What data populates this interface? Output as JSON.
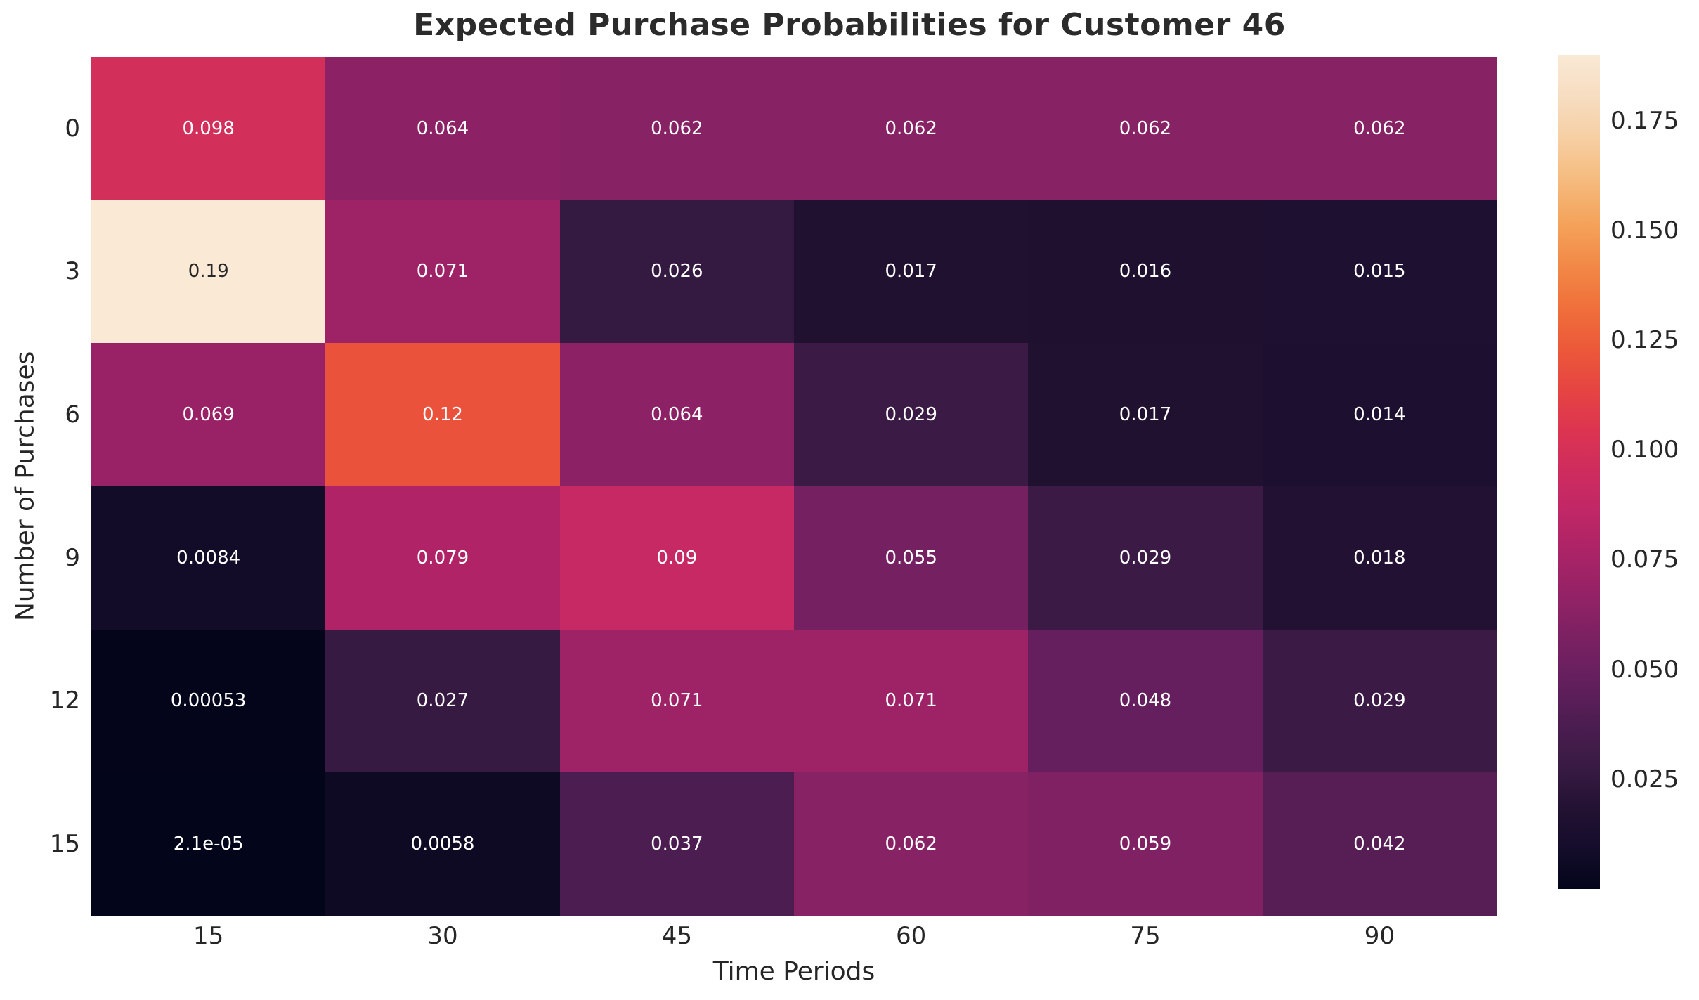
{
  "title": "Expected Purchase Probabilities for Customer 46",
  "chart_data": {
    "type": "heatmap",
    "title": "Expected Purchase Probabilities for Customer 46",
    "xlabel": "Time Periods",
    "ylabel": "Number of Purchases",
    "x_tick_labels": [
      "15",
      "30",
      "45",
      "60",
      "75",
      "90"
    ],
    "y_tick_labels": [
      "0",
      "3",
      "6",
      "9",
      "12",
      "15"
    ],
    "values": [
      [
        0.098,
        0.064,
        0.062,
        0.062,
        0.062,
        0.062
      ],
      [
        0.19,
        0.071,
        0.026,
        0.017,
        0.016,
        0.015
      ],
      [
        0.069,
        0.12,
        0.064,
        0.029,
        0.017,
        0.014
      ],
      [
        0.0084,
        0.079,
        0.09,
        0.055,
        0.029,
        0.018
      ],
      [
        0.00053,
        0.027,
        0.071,
        0.071,
        0.048,
        0.029
      ],
      [
        2.1e-05,
        0.0058,
        0.037,
        0.062,
        0.059,
        0.042
      ]
    ],
    "cell_labels": [
      [
        "0.098",
        "0.064",
        "0.062",
        "0.062",
        "0.062",
        "0.062"
      ],
      [
        "0.19",
        "0.071",
        "0.026",
        "0.017",
        "0.016",
        "0.015"
      ],
      [
        "0.069",
        "0.12",
        "0.064",
        "0.029",
        "0.017",
        "0.014"
      ],
      [
        "0.0084",
        "0.079",
        "0.09",
        "0.055",
        "0.029",
        "0.018"
      ],
      [
        "0.00053",
        "0.027",
        "0.071",
        "0.071",
        "0.048",
        "0.029"
      ],
      [
        "2.1e-05",
        "0.0058",
        "0.037",
        "0.062",
        "0.059",
        "0.042"
      ]
    ],
    "vmin": 0,
    "vmax": 0.19,
    "grid": false,
    "legend_position": "right-colorbar",
    "colorbar_ticks": [
      {
        "label": "0.175",
        "value": 0.175
      },
      {
        "label": "0.150",
        "value": 0.15
      },
      {
        "label": "0.125",
        "value": 0.125
      },
      {
        "label": "0.100",
        "value": 0.1
      },
      {
        "label": "0.075",
        "value": 0.075
      },
      {
        "label": "0.050",
        "value": 0.05
      },
      {
        "label": "0.025",
        "value": 0.025
      }
    ],
    "colormap_name": "rocket",
    "colormap_stops": [
      [
        0.0,
        "#03051A"
      ],
      [
        0.05,
        "#150D2B"
      ],
      [
        0.1,
        "#241233"
      ],
      [
        0.15,
        "#3A1B45"
      ],
      [
        0.2,
        "#4D1D51"
      ],
      [
        0.25,
        "#641F5E"
      ],
      [
        0.3,
        "#7A2162"
      ],
      [
        0.35,
        "#932266"
      ],
      [
        0.4,
        "#A92367"
      ],
      [
        0.45,
        "#BF2766"
      ],
      [
        0.5,
        "#CE2C5F"
      ],
      [
        0.55,
        "#DC3450"
      ],
      [
        0.6,
        "#E64542"
      ],
      [
        0.65,
        "#EC5A39"
      ],
      [
        0.7,
        "#F0713B"
      ],
      [
        0.75,
        "#F28A48"
      ],
      [
        0.8,
        "#F4A45C"
      ],
      [
        0.85,
        "#F5BB7E"
      ],
      [
        0.9,
        "#F6CFA3"
      ],
      [
        0.95,
        "#F7DDC1"
      ],
      [
        1.0,
        "#F9E9D5"
      ]
    ],
    "annotation_text_light": "#FFFFFF",
    "annotation_text_dark": "#262626",
    "axis_text_color": "#262626",
    "background_color": "#FFFFFF"
  }
}
